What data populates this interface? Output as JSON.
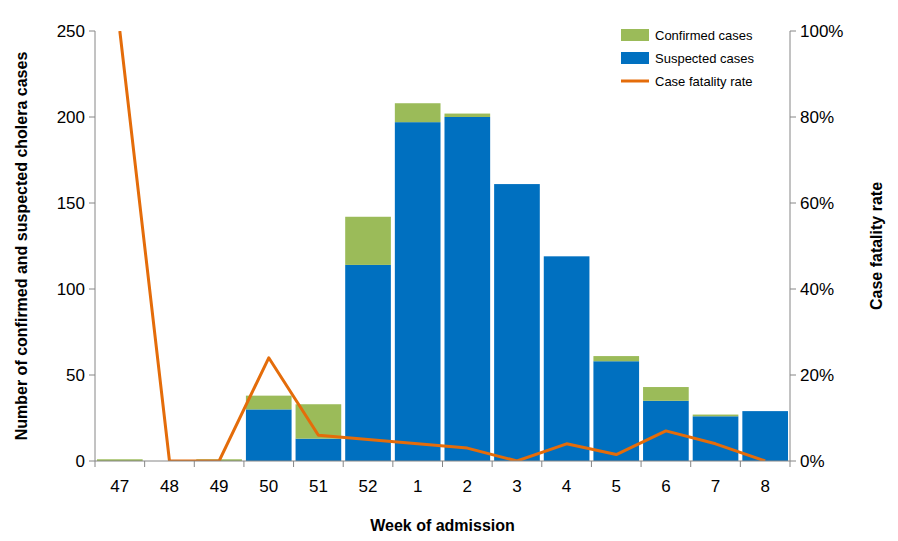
{
  "chart_data": {
    "type": "bar",
    "stacked": true,
    "grid": false,
    "legend": "top-right",
    "x_label": "Week of admission",
    "y_label": "Number of confirmed and suspected cholera cases",
    "y2_label": "Case fatality rate",
    "categories": [
      "47",
      "48",
      "49",
      "50",
      "51",
      "52",
      "1",
      "2",
      "3",
      "4",
      "5",
      "6",
      "7",
      "8"
    ],
    "ylim": [
      0,
      250
    ],
    "yticks": [
      0,
      50,
      100,
      150,
      200,
      250
    ],
    "y2lim": [
      0,
      100
    ],
    "y2ticks": [
      {
        "value": 0,
        "label": "0%"
      },
      {
        "value": 20,
        "label": "20%"
      },
      {
        "value": 40,
        "label": "40%"
      },
      {
        "value": 60,
        "label": "60%"
      },
      {
        "value": 80,
        "label": "80%"
      },
      {
        "value": 100,
        "label": "100%"
      }
    ],
    "series": [
      {
        "name": "Suspected cases",
        "type": "bar",
        "color": "#0070C0",
        "values": [
          0,
          0,
          0,
          30,
          13,
          114,
          197,
          200,
          161,
          119,
          58,
          35,
          26,
          29
        ]
      },
      {
        "name": "Confirmed cases",
        "type": "bar",
        "color": "#9BBB59",
        "values": [
          1,
          0,
          1,
          8,
          20,
          28,
          11,
          2,
          0,
          0,
          3,
          8,
          1,
          0
        ]
      },
      {
        "name": "Case fatality rate",
        "type": "line",
        "axis": "y2",
        "color": "#E46C0A",
        "values": [
          100,
          0,
          0,
          24,
          6,
          5,
          4,
          3,
          0,
          4,
          1.5,
          7,
          4,
          0
        ]
      }
    ]
  }
}
